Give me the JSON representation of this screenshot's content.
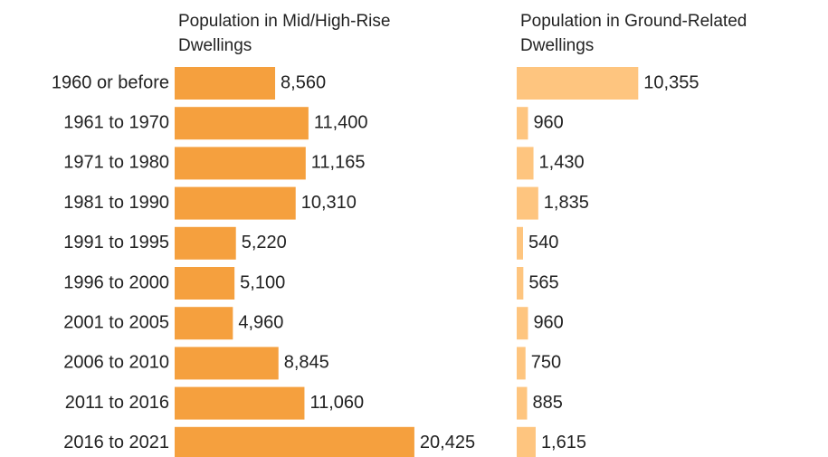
{
  "chart_data": {
    "type": "bar",
    "orientation": "horizontal",
    "categories": [
      "1960 or before",
      "1961 to 1970",
      "1971 to 1980",
      "1981 to 1990",
      "1991 to 1995",
      "1996 to 2000",
      "2001 to 2005",
      "2006 to 2010",
      "2011 to 2016",
      "2016 to 2021"
    ],
    "series": [
      {
        "name": "Population in Mid/High-Rise Dwellings",
        "color": "#f5a03e",
        "values": [
          8560,
          11400,
          11165,
          10310,
          5220,
          5100,
          4960,
          8845,
          11060,
          20425
        ],
        "value_labels": [
          "8,560",
          "11,400",
          "11,165",
          "10,310",
          "5,220",
          "5,100",
          "4,960",
          "8,845",
          "11,060",
          "20,425"
        ]
      },
      {
        "name": "Population in Ground-Related Dwellings",
        "color": "#fec57f",
        "values": [
          10355,
          960,
          1430,
          1835,
          540,
          565,
          960,
          750,
          885,
          1615
        ],
        "value_labels": [
          "10,355",
          "960",
          "1,430",
          "1,835",
          "540",
          "565",
          "960",
          "750",
          "885",
          "1,615"
        ]
      }
    ]
  }
}
